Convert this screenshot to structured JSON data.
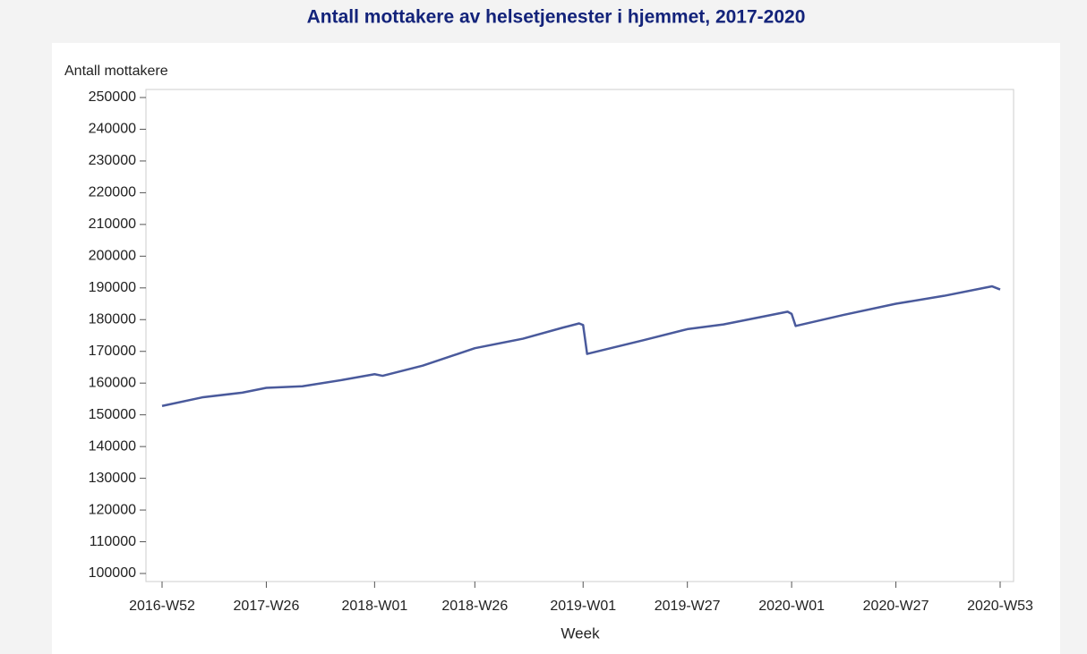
{
  "chart_data": {
    "type": "line",
    "title": "Antall mottakere av helsetjenester i hjemmet, 2017-2020",
    "y_label": "Antall mottakere",
    "x_label": "Week",
    "x": [
      0,
      10,
      20,
      26,
      35,
      45,
      53,
      55,
      65,
      78,
      90,
      100,
      104,
      105,
      106,
      120,
      131,
      140,
      150,
      156,
      157,
      158,
      170,
      183,
      195,
      207,
      209
    ],
    "series": [
      {
        "name": "Antall mottakere",
        "color": "#4a5a9c",
        "values": [
          152800,
          155500,
          157000,
          158500,
          159000,
          161000,
          162800,
          162300,
          165500,
          171000,
          174000,
          177500,
          178800,
          178300,
          169200,
          173500,
          177000,
          178500,
          181000,
          182500,
          181800,
          178000,
          181500,
          185000,
          187500,
          190500,
          189500
        ]
      }
    ],
    "xlim": [
      0,
      209
    ],
    "xticks": [
      {
        "value": 0,
        "label": "2016-W52"
      },
      {
        "value": 26,
        "label": "2017-W26"
      },
      {
        "value": 53,
        "label": "2018-W01"
      },
      {
        "value": 78,
        "label": "2018-W26"
      },
      {
        "value": 105,
        "label": "2019-W01"
      },
      {
        "value": 131,
        "label": "2019-W27"
      },
      {
        "value": 157,
        "label": "2020-W01"
      },
      {
        "value": 183,
        "label": "2020-W27"
      },
      {
        "value": 209,
        "label": "2020-W53"
      }
    ],
    "ylim": [
      100000,
      250000
    ],
    "yticks": [
      100000,
      110000,
      120000,
      130000,
      140000,
      150000,
      160000,
      170000,
      180000,
      190000,
      200000,
      210000,
      220000,
      230000,
      240000,
      250000
    ],
    "grid": false
  }
}
